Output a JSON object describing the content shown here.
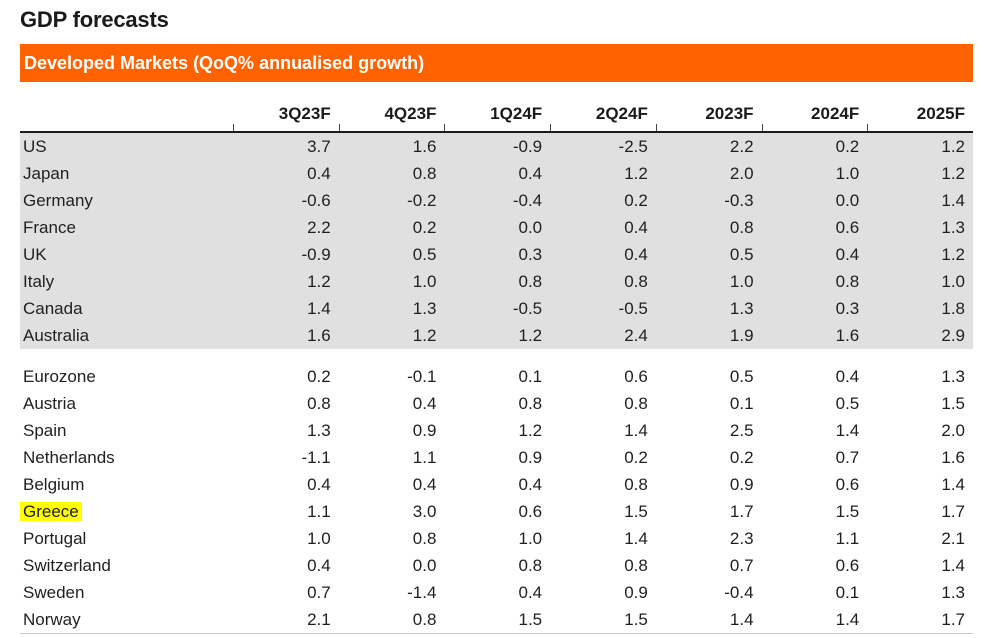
{
  "page": {
    "title": "GDP forecasts"
  },
  "banner": {
    "label": "Developed Markets (QoQ% annualised growth)",
    "bg_color": "#FF6200",
    "text_color": "#FFFFFF"
  },
  "table": {
    "corner_label": "",
    "columns": [
      "3Q23F",
      "4Q23F",
      "1Q24F",
      "2Q24F",
      "2023F",
      "2024F",
      "2025F"
    ],
    "highlight_country": "Greece",
    "colors": {
      "shaded_row_bg": "#E0E0E0",
      "highlight_bg": "#FFFF00",
      "header_rule": "#1a1a1a"
    },
    "groups": [
      {
        "shaded": true,
        "rows": [
          {
            "country": "US",
            "values": [
              "3.7",
              "1.6",
              "-0.9",
              "-2.5",
              "2.2",
              "0.2",
              "1.2"
            ]
          },
          {
            "country": "Japan",
            "values": [
              "0.4",
              "0.8",
              "0.4",
              "1.2",
              "2.0",
              "1.0",
              "1.2"
            ]
          },
          {
            "country": "Germany",
            "values": [
              "-0.6",
              "-0.2",
              "-0.4",
              "0.2",
              "-0.3",
              "0.0",
              "1.4"
            ]
          },
          {
            "country": "France",
            "values": [
              "2.2",
              "0.2",
              "0.0",
              "0.4",
              "0.8",
              "0.6",
              "1.3"
            ]
          },
          {
            "country": "UK",
            "values": [
              "-0.9",
              "0.5",
              "0.3",
              "0.4",
              "0.5",
              "0.4",
              "1.2"
            ]
          },
          {
            "country": "Italy",
            "values": [
              "1.2",
              "1.0",
              "0.8",
              "0.8",
              "1.0",
              "0.8",
              "1.0"
            ]
          },
          {
            "country": "Canada",
            "values": [
              "1.4",
              "1.3",
              "-0.5",
              "-0.5",
              "1.3",
              "0.3",
              "1.8"
            ]
          },
          {
            "country": "Australia",
            "values": [
              "1.6",
              "1.2",
              "1.2",
              "2.4",
              "1.9",
              "1.6",
              "2.9"
            ]
          }
        ]
      },
      {
        "shaded": false,
        "rows": [
          {
            "country": "Eurozone",
            "values": [
              "0.2",
              "-0.1",
              "0.1",
              "0.6",
              "0.5",
              "0.4",
              "1.3"
            ]
          },
          {
            "country": "Austria",
            "values": [
              "0.8",
              "0.4",
              "0.8",
              "0.8",
              "0.1",
              "0.5",
              "1.5"
            ]
          },
          {
            "country": "Spain",
            "values": [
              "1.3",
              "0.9",
              "1.2",
              "1.4",
              "2.5",
              "1.4",
              "2.0"
            ]
          },
          {
            "country": "Netherlands",
            "values": [
              "-1.1",
              "1.1",
              "0.9",
              "0.2",
              "0.2",
              "0.7",
              "1.6"
            ]
          },
          {
            "country": "Belgium",
            "values": [
              "0.4",
              "0.4",
              "0.4",
              "0.8",
              "0.9",
              "0.6",
              "1.4"
            ]
          },
          {
            "country": "Greece",
            "values": [
              "1.1",
              "3.0",
              "0.6",
              "1.5",
              "1.7",
              "1.5",
              "1.7"
            ]
          },
          {
            "country": "Portugal",
            "values": [
              "1.0",
              "0.8",
              "1.0",
              "1.4",
              "2.3",
              "1.1",
              "2.1"
            ]
          },
          {
            "country": "Switzerland",
            "values": [
              "0.4",
              "0.0",
              "0.8",
              "0.8",
              "0.7",
              "0.6",
              "1.4"
            ]
          },
          {
            "country": "Sweden",
            "values": [
              "0.7",
              "-1.4",
              "0.4",
              "0.9",
              "-0.4",
              "0.1",
              "1.3"
            ]
          },
          {
            "country": "Norway",
            "values": [
              "2.1",
              "0.8",
              "1.5",
              "1.5",
              "1.4",
              "1.4",
              "1.7"
            ]
          }
        ]
      }
    ]
  }
}
